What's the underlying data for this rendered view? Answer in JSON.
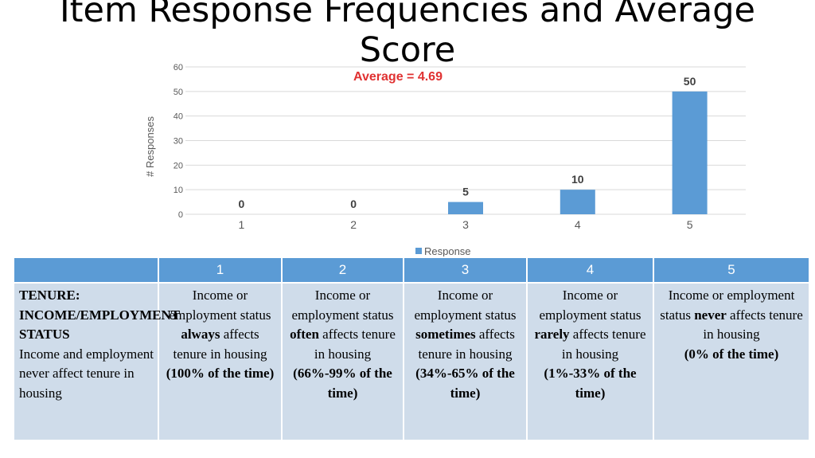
{
  "slide": {
    "title": "Item Response Frequencies and Average Score"
  },
  "colors": {
    "bar": "#5b9bd5",
    "average": "#e03131",
    "grid": "#d9d9d9",
    "header": "#5b9bd5",
    "cell": "#cfdcea"
  },
  "chart_data": {
    "type": "bar",
    "categories": [
      "1",
      "2",
      "3",
      "4",
      "5"
    ],
    "series": [
      {
        "name": "Response",
        "values": [
          0,
          0,
          5,
          10,
          50
        ]
      }
    ],
    "data_labels": [
      "0",
      "0",
      "5",
      "10",
      "50"
    ],
    "ylabel": "# Responses",
    "xlabel": "",
    "ylim": [
      0,
      60
    ],
    "yticks": [
      0,
      10,
      20,
      30,
      40,
      50,
      60
    ],
    "annotation": "Average = 4.69",
    "grid": true,
    "legend": "bottom"
  },
  "table": {
    "headers": [
      "",
      "1",
      "2",
      "3",
      "4",
      "5"
    ],
    "row_label": {
      "title": "TENURE: INCOME/EMPLOYMENT STATUS",
      "text": "Income and employment never affect tenure in housing"
    },
    "cells": [
      {
        "pre": "Income or employment status ",
        "key": "always",
        "post": " affects tenure in housing",
        "pct": "(100% of the time)"
      },
      {
        "pre": "Income or employment status ",
        "key": "often",
        "post": " affects tenure in housing",
        "pct": "(66%-99% of the time)"
      },
      {
        "pre": "Income or employment status ",
        "key": "sometimes",
        "post": " affects tenure in housing",
        "pct": "(34%-65% of the time)"
      },
      {
        "pre": "Income or employment status ",
        "key": "rarely",
        "post": " affects tenure in housing",
        "pct": "(1%-33% of the time)"
      },
      {
        "pre": "Income or employment status ",
        "key": "never",
        "post": " affects tenure in housing",
        "pct": "(0% of the time)"
      }
    ]
  }
}
